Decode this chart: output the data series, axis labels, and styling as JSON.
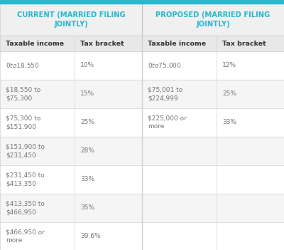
{
  "title_left": "CURRENT (MARRIED FILING\nJOINTLY)",
  "title_right": "PROPOSED (MARRIED FILING\nJOINTLY)",
  "col_headers": [
    "Taxable income",
    "Tax bracket",
    "Taxable income",
    "Tax bracket"
  ],
  "current_rows": [
    [
      "$0 to $18,550",
      "10%"
    ],
    [
      "$18,550 to\n$75,300",
      "15%"
    ],
    [
      "$75,300 to\n$151,900",
      "25%"
    ],
    [
      "$151,900 to\n$231,450",
      "28%"
    ],
    [
      "$231,450 to\n$413,350",
      "33%"
    ],
    [
      "$413,350 to\n$466,950",
      "35%"
    ],
    [
      "$466,950 or\nmore",
      "39.6%"
    ]
  ],
  "proposed_rows": [
    [
      "$0 to $75,000",
      "12%"
    ],
    [
      "$75,001 to\n$224,999",
      "25%"
    ],
    [
      "$225,000 or\nmore",
      "33%"
    ],
    [
      "",
      ""
    ],
    [
      "",
      ""
    ],
    [
      "",
      ""
    ],
    [
      "",
      ""
    ]
  ],
  "header_bg": "#f0f0f0",
  "header_text_color": "#29b8cc",
  "col_header_bg": "#e8e8e8",
  "col_header_text_color": "#333333",
  "row_bg_odd": "#ffffff",
  "row_bg_even": "#f5f5f5",
  "cell_text_color": "#777777",
  "border_color": "#d0d0d0",
  "top_bar_color": "#29b8cc",
  "mid_divider_color": "#c0c0c0",
  "background_color": "#f8f8f8"
}
